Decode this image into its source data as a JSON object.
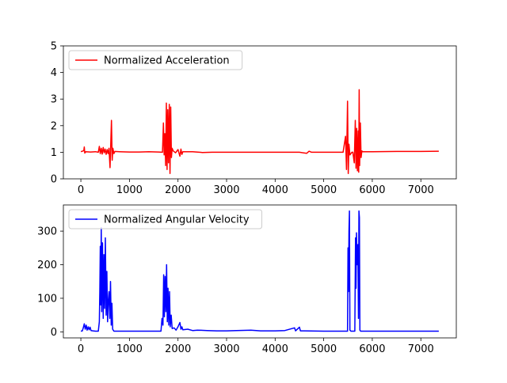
{
  "chart_data": [
    {
      "type": "line",
      "title": "",
      "xlabel": "",
      "ylabel": "",
      "xlim": [
        -360,
        7730
      ],
      "ylim": [
        0,
        5
      ],
      "xticks": [
        0,
        1000,
        2000,
        3000,
        4000,
        5000,
        6000,
        7000
      ],
      "xtick_labels": [
        "0",
        "1000",
        "2000",
        "3000",
        "4000",
        "5000",
        "6000",
        "7000"
      ],
      "yticks": [
        0,
        1,
        2,
        3,
        4,
        5
      ],
      "ytick_labels": [
        "0",
        "1",
        "2",
        "3",
        "4",
        "5"
      ],
      "grid": false,
      "legend_position": "upper-left",
      "series": [
        {
          "name": "Normalized Acceleration",
          "color": "#ff0000",
          "baseline": 1.0,
          "x_range": [
            0,
            7370
          ],
          "points": [
            [
              0,
              1.02
            ],
            [
              60,
              1.06
            ],
            [
              70,
              1.2
            ],
            [
              80,
              0.97
            ],
            [
              100,
              1.02
            ],
            [
              200,
              1.01
            ],
            [
              300,
              1.02
            ],
            [
              360,
              1.0
            ],
            [
              380,
              1.22
            ],
            [
              400,
              0.95
            ],
            [
              420,
              1.15
            ],
            [
              440,
              0.93
            ],
            [
              460,
              1.18
            ],
            [
              480,
              0.98
            ],
            [
              500,
              1.12
            ],
            [
              520,
              0.92
            ],
            [
              540,
              1.1
            ],
            [
              560,
              0.95
            ],
            [
              580,
              1.15
            ],
            [
              600,
              0.42
            ],
            [
              615,
              1.3
            ],
            [
              630,
              2.2
            ],
            [
              645,
              0.7
            ],
            [
              660,
              1.15
            ],
            [
              680,
              0.95
            ],
            [
              700,
              1.03
            ],
            [
              800,
              1.02
            ],
            [
              1000,
              1.01
            ],
            [
              1200,
              1.01
            ],
            [
              1400,
              1.02
            ],
            [
              1600,
              1.01
            ],
            [
              1680,
              1.0
            ],
            [
              1700,
              2.1
            ],
            [
              1715,
              0.9
            ],
            [
              1730,
              1.7
            ],
            [
              1745,
              0.5
            ],
            [
              1760,
              2.85
            ],
            [
              1775,
              0.35
            ],
            [
              1790,
              2.6
            ],
            [
              1805,
              0.6
            ],
            [
              1820,
              2.8
            ],
            [
              1835,
              0.2
            ],
            [
              1850,
              2.7
            ],
            [
              1865,
              0.8
            ],
            [
              1880,
              1.15
            ],
            [
              1900,
              1.05
            ],
            [
              1950,
              0.98
            ],
            [
              2000,
              1.1
            ],
            [
              2040,
              0.85
            ],
            [
              2060,
              1.12
            ],
            [
              2080,
              0.92
            ],
            [
              2100,
              1.02
            ],
            [
              2300,
              1.02
            ],
            [
              2500,
              0.99
            ],
            [
              2700,
              1.0
            ],
            [
              3000,
              1.0
            ],
            [
              3500,
              1.0
            ],
            [
              4000,
              1.0
            ],
            [
              4500,
              1.0
            ],
            [
              4650,
              0.96
            ],
            [
              4700,
              1.04
            ],
            [
              4750,
              1.0
            ],
            [
              5000,
              1.0
            ],
            [
              5400,
              1.0
            ],
            [
              5450,
              1.6
            ],
            [
              5470,
              0.35
            ],
            [
              5490,
              2.92
            ],
            [
              5505,
              0.2
            ],
            [
              5520,
              1.3
            ],
            [
              5540,
              0.9
            ],
            [
              5560,
              0.95
            ],
            [
              5580,
              1.0
            ],
            [
              5600,
              1.0
            ],
            [
              5630,
              0.6
            ],
            [
              5650,
              2.2
            ],
            [
              5665,
              0.4
            ],
            [
              5680,
              1.9
            ],
            [
              5695,
              0.3
            ],
            [
              5710,
              1.8
            ],
            [
              5720,
              0.25
            ],
            [
              5730,
              3.35
            ],
            [
              5740,
              0.5
            ],
            [
              5755,
              2.1
            ],
            [
              5770,
              0.8
            ],
            [
              5785,
              1.05
            ],
            [
              5800,
              1.02
            ],
            [
              6000,
              1.02
            ],
            [
              6500,
              1.03
            ],
            [
              7000,
              1.03
            ],
            [
              7370,
              1.04
            ]
          ]
        }
      ]
    },
    {
      "type": "line",
      "title": "",
      "xlabel": "",
      "ylabel": "",
      "xlim": [
        -360,
        7730
      ],
      "ylim": [
        -18,
        378
      ],
      "xticks": [
        0,
        1000,
        2000,
        3000,
        4000,
        5000,
        6000,
        7000
      ],
      "xtick_labels": [
        "0",
        "1000",
        "2000",
        "3000",
        "4000",
        "5000",
        "6000",
        "7000"
      ],
      "yticks": [
        0,
        100,
        200,
        300
      ],
      "ytick_labels": [
        "0",
        "100",
        "200",
        "300"
      ],
      "grid": false,
      "legend_position": "upper-left",
      "series": [
        {
          "name": "Normalized Angular Velocity",
          "color": "#0000ff",
          "baseline": 2,
          "x_range": [
            0,
            7370
          ],
          "points": [
            [
              0,
              2
            ],
            [
              30,
              3
            ],
            [
              50,
              12
            ],
            [
              70,
              24
            ],
            [
              90,
              8
            ],
            [
              110,
              20
            ],
            [
              130,
              5
            ],
            [
              150,
              15
            ],
            [
              170,
              6
            ],
            [
              190,
              14
            ],
            [
              210,
              4
            ],
            [
              250,
              3
            ],
            [
              300,
              2
            ],
            [
              360,
              2
            ],
            [
              380,
              30
            ],
            [
              390,
              120
            ],
            [
              400,
              255
            ],
            [
              410,
              80
            ],
            [
              420,
              310
            ],
            [
              430,
              60
            ],
            [
              445,
              265
            ],
            [
              460,
              40
            ],
            [
              475,
              230
            ],
            [
              490,
              70
            ],
            [
              505,
              280
            ],
            [
              520,
              50
            ],
            [
              535,
              180
            ],
            [
              550,
              30
            ],
            [
              565,
              90
            ],
            [
              580,
              120
            ],
            [
              595,
              40
            ],
            [
              610,
              150
            ],
            [
              625,
              20
            ],
            [
              640,
              85
            ],
            [
              655,
              8
            ],
            [
              680,
              2
            ],
            [
              1000,
              2
            ],
            [
              1400,
              2
            ],
            [
              1650,
              2
            ],
            [
              1670,
              40
            ],
            [
              1690,
              20
            ],
            [
              1705,
              170
            ],
            [
              1720,
              45
            ],
            [
              1735,
              165
            ],
            [
              1750,
              60
            ],
            [
              1765,
              200
            ],
            [
              1780,
              30
            ],
            [
              1795,
              130
            ],
            [
              1810,
              20
            ],
            [
              1825,
              120
            ],
            [
              1840,
              15
            ],
            [
              1860,
              50
            ],
            [
              1880,
              10
            ],
            [
              1920,
              12
            ],
            [
              1960,
              5
            ],
            [
              2000,
              15
            ],
            [
              2040,
              28
            ],
            [
              2060,
              8
            ],
            [
              2080,
              15
            ],
            [
              2100,
              6
            ],
            [
              2200,
              8
            ],
            [
              2300,
              4
            ],
            [
              2400,
              5
            ],
            [
              2600,
              4
            ],
            [
              2800,
              3
            ],
            [
              3000,
              3
            ],
            [
              3200,
              4
            ],
            [
              3500,
              5
            ],
            [
              3700,
              3
            ],
            [
              4000,
              3
            ],
            [
              4200,
              4
            ],
            [
              4400,
              12
            ],
            [
              4420,
              3
            ],
            [
              4500,
              14
            ],
            [
              4520,
              3
            ],
            [
              4600,
              3
            ],
            [
              5000,
              2
            ],
            [
              5490,
              2
            ],
            [
              5500,
              250
            ],
            [
              5510,
              120
            ],
            [
              5520,
              300
            ],
            [
              5530,
              360
            ],
            [
              5540,
              5
            ],
            [
              5560,
              2
            ],
            [
              5600,
              2
            ],
            [
              5640,
              2
            ],
            [
              5655,
              280
            ],
            [
              5665,
              130
            ],
            [
              5675,
              295
            ],
            [
              5690,
              200
            ],
            [
              5705,
              260
            ],
            [
              5715,
              40
            ],
            [
              5725,
              360
            ],
            [
              5735,
              340
            ],
            [
              5745,
              5
            ],
            [
              5760,
              2
            ],
            [
              6000,
              2
            ],
            [
              7000,
              2
            ],
            [
              7370,
              2
            ]
          ]
        }
      ]
    }
  ]
}
